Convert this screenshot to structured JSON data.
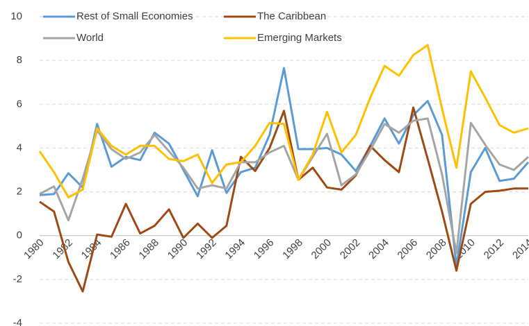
{
  "chart_data": {
    "type": "line",
    "x": [
      1980,
      1981,
      1982,
      1983,
      1984,
      1985,
      1986,
      1987,
      1988,
      1989,
      1990,
      1991,
      1992,
      1993,
      1994,
      1995,
      1996,
      1997,
      1998,
      1999,
      2000,
      2001,
      2002,
      2003,
      2004,
      2005,
      2006,
      2007,
      2008,
      2009,
      2010,
      2011,
      2012,
      2013,
      2014
    ],
    "xlim": [
      1980,
      2014
    ],
    "xticks": [
      1980,
      1982,
      1984,
      1986,
      1988,
      1990,
      1992,
      1994,
      1996,
      1998,
      2000,
      2002,
      2004,
      2006,
      2008,
      2010,
      2012,
      2014
    ],
    "ylim": [
      -4,
      10
    ],
    "yticks": [
      -4,
      -2,
      0,
      2,
      4,
      6,
      8,
      10
    ],
    "grid": true,
    "legend": "top-left",
    "series": [
      {
        "name": "Rest of Small Economies",
        "color": "#5B9BD5",
        "values": [
          1.85,
          1.9,
          2.85,
          2.2,
          5.1,
          3.15,
          3.6,
          3.45,
          4.7,
          4.2,
          3.0,
          1.8,
          3.9,
          1.95,
          2.9,
          3.1,
          4.6,
          7.65,
          3.95,
          3.95,
          4.0,
          3.7,
          2.95,
          4.1,
          5.35,
          4.2,
          5.5,
          6.15,
          4.6,
          -1.4,
          2.9,
          4.0,
          2.5,
          2.6,
          3.35
        ]
      },
      {
        "name": "The Caribbean",
        "color": "#9E4A14",
        "values": [
          1.55,
          1.1,
          -1.2,
          -2.55,
          0.05,
          -0.05,
          1.45,
          0.1,
          0.45,
          1.2,
          -0.1,
          0.55,
          -0.1,
          0.45,
          3.6,
          2.95,
          4.0,
          5.7,
          2.55,
          3.1,
          2.2,
          2.1,
          2.75,
          4.1,
          3.45,
          2.9,
          5.85,
          3.5,
          1.1,
          -1.6,
          1.45,
          2.0,
          2.05,
          2.15,
          2.15
        ]
      },
      {
        "name": "World",
        "color": "#A5A5A5",
        "values": [
          1.9,
          2.25,
          0.7,
          2.6,
          4.8,
          3.95,
          3.5,
          3.8,
          4.6,
          3.85,
          3.1,
          2.15,
          2.3,
          2.15,
          3.35,
          3.35,
          3.8,
          4.1,
          2.55,
          3.6,
          4.65,
          2.3,
          2.8,
          3.9,
          5.1,
          4.7,
          5.25,
          5.35,
          2.8,
          -0.8,
          5.15,
          4.15,
          3.25,
          3.0,
          3.6
        ]
      },
      {
        "name": "Emerging Markets",
        "color": "#FFC000",
        "values": [
          3.85,
          2.9,
          1.75,
          2.1,
          4.9,
          4.1,
          3.7,
          4.1,
          4.1,
          3.5,
          3.4,
          3.7,
          2.4,
          3.25,
          3.35,
          4.1,
          5.15,
          5.1,
          2.55,
          3.7,
          5.65,
          3.8,
          4.6,
          6.3,
          7.75,
          7.3,
          8.25,
          8.7,
          5.8,
          3.1,
          7.5,
          6.3,
          5.05,
          4.7,
          4.9
        ]
      }
    ]
  }
}
